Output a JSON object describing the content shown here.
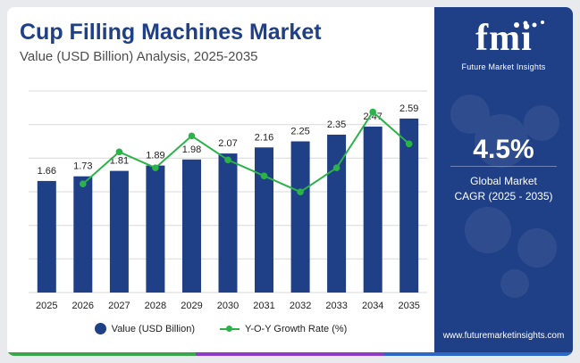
{
  "header": {
    "title": "Cup Filling Machines Market",
    "subtitle": "Value (USD Billion) Analysis, 2025-2035"
  },
  "legend": {
    "bar_label": "Value (USD Billion)",
    "line_label": "Y-O-Y Growth Rate (%)"
  },
  "panel": {
    "logo_text": "fmi",
    "tagline": "Future Market Insights",
    "cagr_value": "4.5%",
    "cagr_label_line1": "Global Market",
    "cagr_label_line2": "CAGR (2025 - 2035)",
    "website": "www.futuremarketinsights.com"
  },
  "colors": {
    "bar": "#1f3f86",
    "line": "#2bb34a",
    "panel": "#1f3f86",
    "title": "#1f3f86"
  },
  "chart_data": {
    "type": "bar",
    "title": "Cup Filling Machines Market",
    "subtitle": "Value (USD Billion) Analysis, 2025-2035",
    "categories": [
      "2025",
      "2026",
      "2027",
      "2028",
      "2029",
      "2030",
      "2031",
      "2032",
      "2033",
      "2034",
      "2035"
    ],
    "series": [
      {
        "name": "Value (USD Billion)",
        "type": "bar",
        "values": [
          1.66,
          1.73,
          1.81,
          1.89,
          1.98,
          2.07,
          2.16,
          2.25,
          2.35,
          2.47,
          2.59
        ],
        "labels": [
          "1.66",
          "1.73",
          "1.81",
          "1.89",
          "1.98",
          "2.07",
          "2.16",
          "2.25",
          "2.35",
          "2.47",
          "2.59"
        ]
      },
      {
        "name": "Y-O-Y Growth Rate (%)",
        "type": "line",
        "values": [
          null,
          4.2,
          4.6,
          4.4,
          4.8,
          4.5,
          4.3,
          4.1,
          4.4,
          5.1,
          4.7
        ]
      }
    ],
    "ylim": [
      0,
      3.0
    ],
    "grid": true,
    "legend_position": "bottom-center"
  }
}
